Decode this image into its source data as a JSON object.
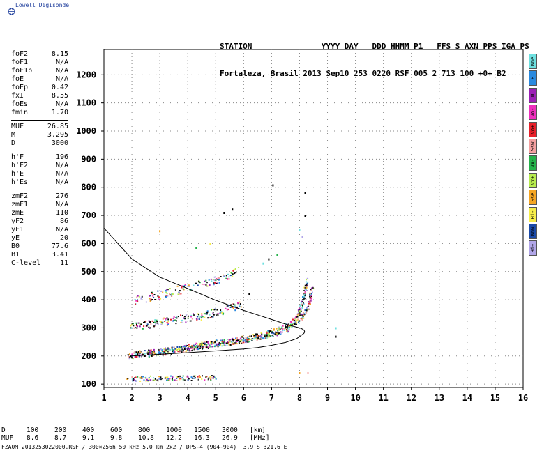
{
  "brand": {
    "name": "Lowell Digisonde"
  },
  "header": {
    "line1": "STATION               YYYY DAY   DDD HHMM P1   FFS S AXN PPS IGA PS",
    "line2": "Fortaleza, Brasil 2013 Sep10 253 0220 RSF 005 2 713 100 +0+ B2"
  },
  "params": {
    "group1": [
      {
        "k": "foF2",
        "v": "8.15"
      },
      {
        "k": "foF1",
        "v": "N/A"
      },
      {
        "k": "foF1p",
        "v": "N/A"
      },
      {
        "k": "foE",
        "v": "N/A"
      },
      {
        "k": "foEp",
        "v": "0.42"
      },
      {
        "k": "fxI",
        "v": "8.55"
      },
      {
        "k": "foEs",
        "v": "N/A"
      },
      {
        "k": "fmin",
        "v": "1.70"
      }
    ],
    "group2": [
      {
        "k": "MUF",
        "v": "26.85"
      },
      {
        "k": "M",
        "v": "3.295"
      },
      {
        "k": "D",
        "v": "3000"
      }
    ],
    "group3": [
      {
        "k": "h'F",
        "v": "196"
      },
      {
        "k": "h'F2",
        "v": "N/A"
      },
      {
        "k": "h'E",
        "v": "N/A"
      },
      {
        "k": "h'Es",
        "v": "N/A"
      }
    ],
    "group4": [
      {
        "k": "zmF2",
        "v": "276"
      },
      {
        "k": "zmF1",
        "v": "N/A"
      },
      {
        "k": "zmE",
        "v": "110"
      },
      {
        "k": "yF2",
        "v": "86"
      },
      {
        "k": "yF1",
        "v": "N/A"
      },
      {
        "k": "yE",
        "v": "20"
      },
      {
        "k": "B0",
        "v": "77.6"
      },
      {
        "k": "B1",
        "v": "3.41"
      },
      {
        "k": "C-level",
        "v": "11"
      }
    ]
  },
  "legend": [
    {
      "label": "Nne",
      "color": "#6ee0e0"
    },
    {
      "label": "E",
      "color": "#2a8adf"
    },
    {
      "label": "W",
      "color": "#9b1fb5"
    },
    {
      "label": "Vo-",
      "color": "#ee2fbd"
    },
    {
      "label": "Vo+",
      "color": "#e8202a"
    },
    {
      "label": "Ssw",
      "color": "#f4a0a0"
    },
    {
      "label": "Vx-",
      "color": "#25b24a"
    },
    {
      "label": "Vx+",
      "color": "#b7ec4f"
    },
    {
      "label": "Sse",
      "color": "#f5a623"
    },
    {
      "label": "Hi-",
      "color": "#f7ee4a"
    },
    {
      "label": "Nnw",
      "color": "#1a4aa8"
    },
    {
      "label": "Hi+",
      "color": "#b1a6e8"
    }
  ],
  "chart_data": {
    "type": "scatter",
    "xlim": [
      1,
      16
    ],
    "ylim": [
      88,
      1290
    ],
    "xticks": [
      1,
      2,
      3,
      4,
      5,
      6,
      7,
      8,
      9,
      10,
      11,
      12,
      13,
      14,
      15,
      16
    ],
    "yticks": [
      100,
      200,
      300,
      400,
      500,
      600,
      700,
      800,
      900,
      1000,
      1100,
      1200
    ],
    "grid": "dotted",
    "traces": [
      {
        "name": "O-mode F2 trace",
        "x": [
          1.8,
          2.5,
          3.5,
          4.5,
          5.5,
          6.5,
          7.2,
          7.6,
          7.9,
          8.05,
          8.15,
          8.25
        ],
        "y": [
          205,
          210,
          222,
          240,
          252,
          270,
          290,
          310,
          340,
          380,
          420,
          470
        ]
      },
      {
        "name": "X-mode F2 trace",
        "x": [
          2.2,
          3,
          4,
          5,
          6,
          7,
          7.6,
          8.0,
          8.3,
          8.45
        ],
        "y": [
          210,
          215,
          230,
          245,
          262,
          282,
          300,
          330,
          380,
          450
        ]
      },
      {
        "name": "Second-hop trace",
        "x": [
          1.9,
          2.5,
          3.5,
          4.5,
          5.5,
          5.9
        ],
        "y": [
          305,
          315,
          330,
          345,
          370,
          385
        ]
      },
      {
        "name": "Third-hop trace",
        "x": [
          2.1,
          3,
          4,
          5,
          5.5,
          5.8
        ],
        "y": [
          400,
          420,
          445,
          470,
          490,
          505
        ]
      },
      {
        "name": "Es-like echoes",
        "x": [
          1.8,
          2.5,
          3.5,
          4.5,
          5
        ],
        "y": [
          120,
          122,
          123,
          124,
          125
        ]
      }
    ],
    "profile": {
      "upper": {
        "x": [
          1.0,
          2.0,
          3.0,
          4.0,
          5.0,
          6.0,
          7.0,
          7.6,
          8.0
        ],
        "y": [
          655,
          545,
          480,
          440,
          398,
          362,
          330,
          310,
          300
        ]
      },
      "lower": {
        "x": [
          8.15,
          7.9,
          7.5,
          7.0,
          6.5,
          6.0,
          5.0,
          4.0,
          3.0,
          2.0,
          1.9
        ],
        "y": [
          280,
          262,
          248,
          238,
          230,
          225,
          218,
          212,
          206,
          200,
          196
        ]
      }
    },
    "isolated_points": [
      {
        "x": 3,
        "y": 645
      },
      {
        "x": 5.6,
        "y": 722
      },
      {
        "x": 5.3,
        "y": 710
      },
      {
        "x": 7.05,
        "y": 808
      },
      {
        "x": 8.2,
        "y": 782
      },
      {
        "x": 8.2,
        "y": 700
      },
      {
        "x": 8.0,
        "y": 650
      },
      {
        "x": 8.1,
        "y": 625
      },
      {
        "x": 4.3,
        "y": 585
      },
      {
        "x": 4.8,
        "y": 600
      },
      {
        "x": 7.2,
        "y": 560
      },
      {
        "x": 6.9,
        "y": 545
      },
      {
        "x": 6.7,
        "y": 530
      },
      {
        "x": 9.3,
        "y": 300
      },
      {
        "x": 9.3,
        "y": 270
      },
      {
        "x": 8.0,
        "y": 140
      },
      {
        "x": 8.3,
        "y": 140
      },
      {
        "x": 6.2,
        "y": 420
      }
    ]
  },
  "table": {
    "D": {
      "label": "D",
      "values": [
        "100",
        "200",
        "400",
        "600",
        "800",
        "1000",
        "1500",
        "3000"
      ],
      "unit": "[km]"
    },
    "MUF": {
      "label": "MUF",
      "values": [
        "8.6",
        "8.7",
        "9.1",
        "9.8",
        "10.8",
        "12.2",
        "16.3",
        "26.9"
      ],
      "unit": "[MHz]"
    }
  },
  "footer": "FZA0M_2013253022000.RSF / 300×256h 50 kHz 5.0 km 2x2 / DPS-4 (904-904)  3.9 S 321.6 E"
}
